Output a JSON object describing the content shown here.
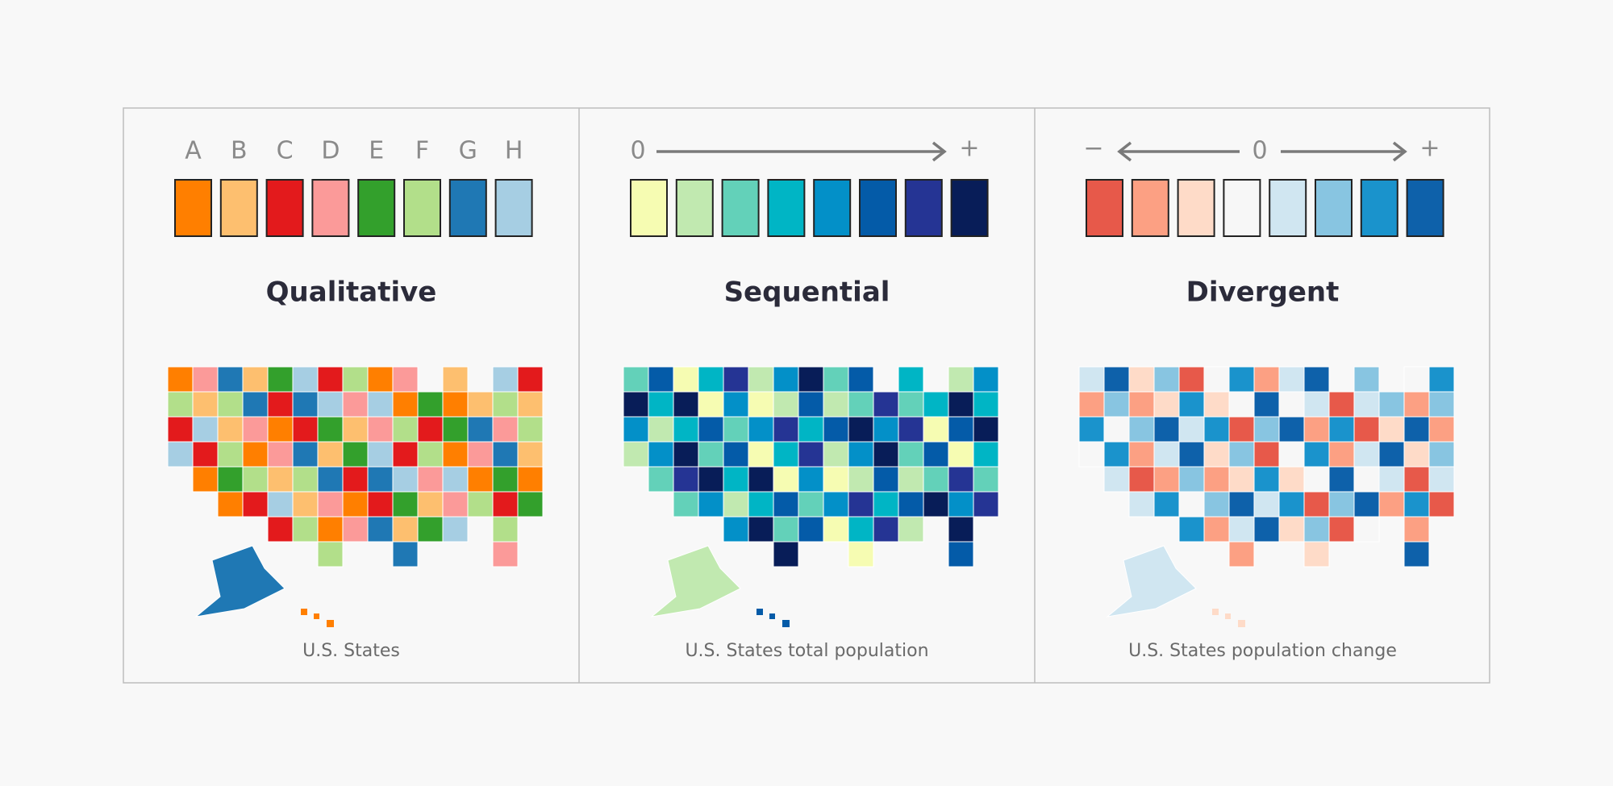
{
  "panels": [
    {
      "title": "Qualitative",
      "labels": [
        "A",
        "B",
        "C",
        "D",
        "E",
        "F",
        "G",
        "H"
      ],
      "swatches": [
        "#ff7f00",
        "#fdbf6f",
        "#e31a1c",
        "#fb9a99",
        "#33a02c",
        "#b2df8a",
        "#1f78b4",
        "#a6cee3"
      ],
      "caption": "U.S. States"
    },
    {
      "title": "Sequential",
      "labels": [
        "0",
        "+"
      ],
      "swatches": [
        "#f6fcb2",
        "#c1e9b0",
        "#63d1b9",
        "#00b5c5",
        "#0390c8",
        "#045ba8",
        "#253494",
        "#081d58"
      ],
      "caption": "U.S. States total population"
    },
    {
      "title": "Divergent",
      "labels": [
        "−",
        "0",
        "+"
      ],
      "swatches": [
        "#e7594a",
        "#fca083",
        "#fedbc8",
        "#f7f7f7",
        "#d0e6f1",
        "#88c5e1",
        "#1a93cc",
        "#0e61aa"
      ],
      "caption": "U.S. States population change"
    }
  ]
}
